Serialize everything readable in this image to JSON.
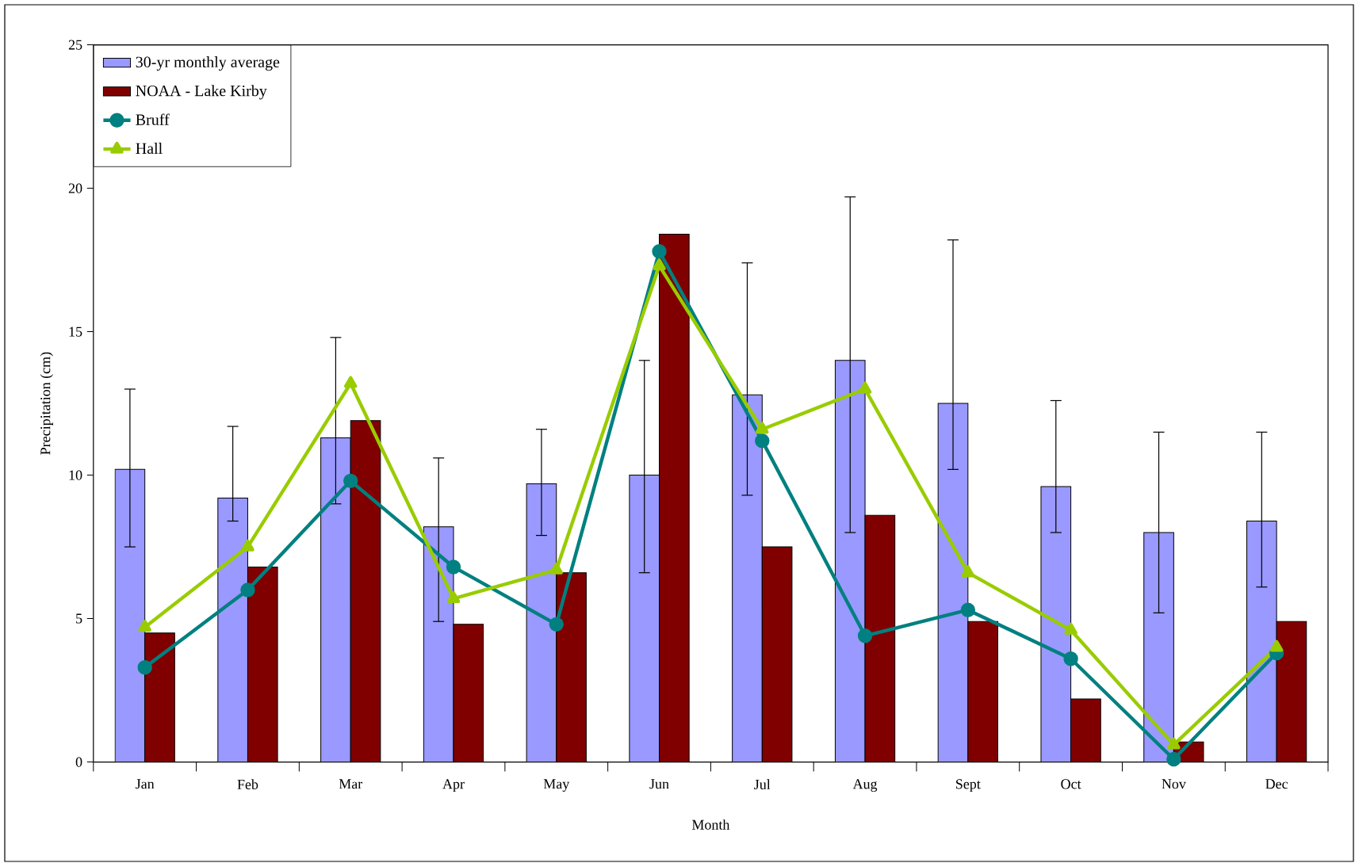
{
  "chart_data": {
    "type": "bar",
    "xlabel": "Month",
    "ylabel": "Precipitation (cm)",
    "categories": [
      "Jan",
      "Feb",
      "Mar",
      "Apr",
      "May",
      "Jun",
      "Jul",
      "Aug",
      "Sept",
      "Oct",
      "Nov",
      "Dec"
    ],
    "ylim": [
      0,
      25
    ],
    "yticks": [
      0,
      5,
      10,
      15,
      20,
      25
    ],
    "legend": "top left",
    "series": [
      {
        "name": "30-yr monthly average",
        "color": "#9999ff",
        "values": [
          10.2,
          9.2,
          11.3,
          8.2,
          9.7,
          10.0,
          12.8,
          14.0,
          12.5,
          9.6,
          8.0,
          8.4
        ],
        "errors": [
          [
            7.5,
            13.0
          ],
          [
            8.4,
            11.7
          ],
          [
            9.0,
            14.8
          ],
          [
            4.9,
            10.6
          ],
          [
            7.9,
            11.6
          ],
          [
            6.6,
            14.0
          ],
          [
            9.3,
            17.4
          ],
          [
            8.0,
            19.7
          ],
          [
            10.2,
            18.2
          ],
          [
            8.0,
            12.6
          ],
          [
            5.2,
            11.5
          ],
          [
            6.1,
            11.5
          ]
        ]
      },
      {
        "name": "NOAA - Lake Kirby",
        "color": "#800000",
        "values": [
          4.5,
          6.8,
          11.9,
          4.8,
          6.6,
          18.4,
          7.5,
          8.6,
          4.9,
          2.2,
          0.7,
          4.9
        ]
      },
      {
        "name": "Bruff",
        "type": "line",
        "color": "#008080",
        "marker": "circle",
        "line_style": "solid",
        "values": [
          3.3,
          6.0,
          9.8,
          6.8,
          4.8,
          17.8,
          11.2,
          4.4,
          5.3,
          3.6,
          0.1,
          3.8
        ]
      },
      {
        "name": "Hall",
        "type": "line",
        "color": "#99cc00",
        "marker": "triangle",
        "line_style": "solid",
        "values": [
          4.7,
          7.5,
          13.2,
          5.7,
          6.7,
          17.3,
          11.6,
          13.0,
          6.6,
          4.6,
          0.6,
          4.0
        ]
      }
    ]
  }
}
